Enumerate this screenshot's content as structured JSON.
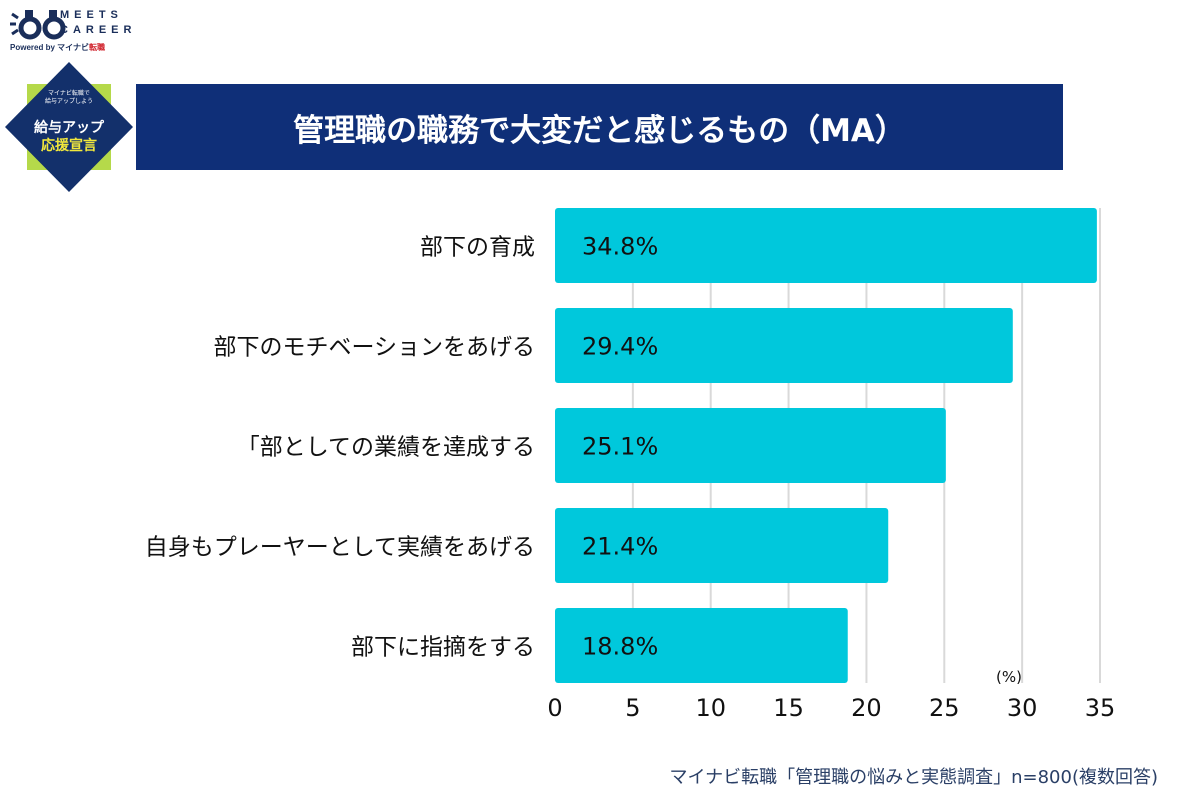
{
  "logo": {
    "text_line1": "MEETS",
    "text_line2": "CAREER",
    "powered_by": "Powered by",
    "brand": "マイナビ",
    "brand_suffix": "転職"
  },
  "badge": {
    "line1": "マイナビ転職で",
    "line2": "給与アップしよう",
    "line3": "給与アップ",
    "line4": "応援宣言",
    "colors": {
      "diamond": "#13306b",
      "square": "#b5d94a",
      "highlight": "#f2e83c"
    }
  },
  "header": {
    "title": "管理職の職務で大変だと感じるもの（MA）"
  },
  "source": "マイナビ転職「管理職の悩みと実態調査」n=800(複数回答)",
  "chart_data": {
    "type": "bar",
    "orientation": "horizontal",
    "categories": [
      "部下の育成",
      "部下のモチベーションをあげる",
      "「部としての業績を達成する",
      "自身もプレーヤーとして実績をあげる",
      "部下に指摘をする"
    ],
    "values": [
      34.8,
      29.4,
      25.1,
      21.4,
      18.8
    ],
    "data_labels": [
      "34.8%",
      "29.4%",
      "25.1%",
      "21.4%",
      "18.8%"
    ],
    "unit_label": "(%)",
    "xlim": [
      0,
      35
    ],
    "xticks": [
      0,
      5,
      10,
      15,
      20,
      25,
      30,
      35
    ],
    "grid": true,
    "bar_color": "#00c8dc",
    "grid_color": "#d9d9d9"
  }
}
